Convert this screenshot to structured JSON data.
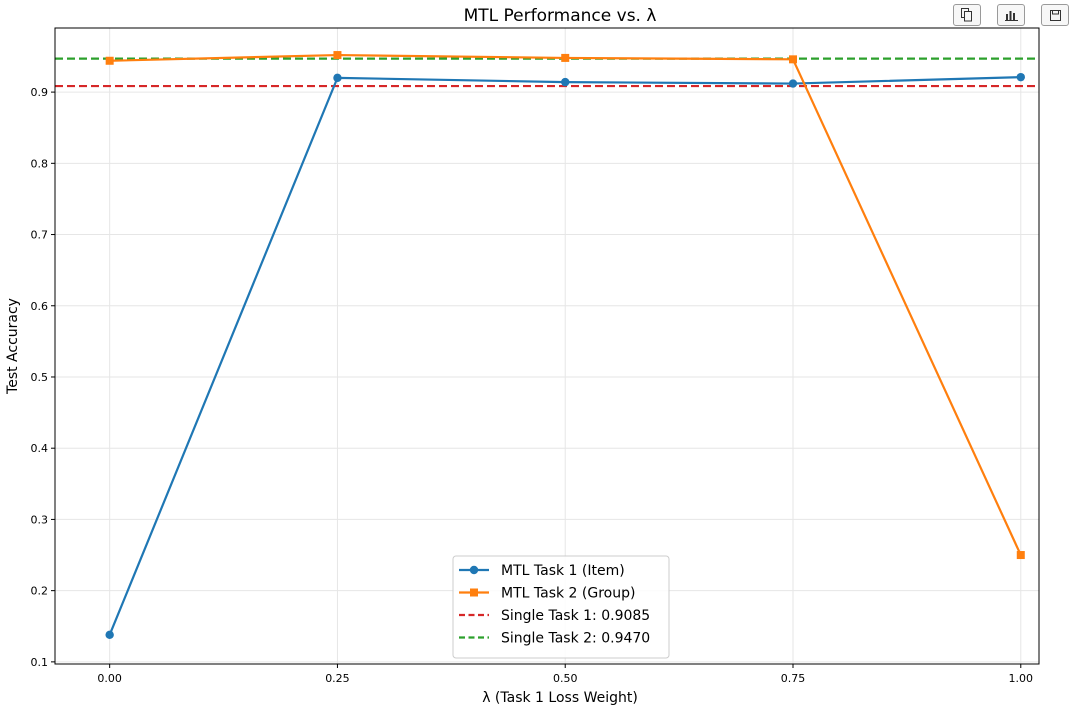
{
  "toolbar": {
    "icons": [
      "copy-icon",
      "bar-chart-icon",
      "save-icon"
    ]
  },
  "chart_data": {
    "type": "line",
    "title": "MTL Performance vs. λ",
    "xlabel": "λ (Task 1 Loss Weight)",
    "ylabel": "Test Accuracy",
    "x": [
      0.0,
      0.25,
      0.5,
      0.75,
      1.0
    ],
    "x_tick_labels": [
      "0.00",
      "0.25",
      "0.50",
      "0.75",
      "1.00"
    ],
    "y_tick_labels": [
      "0.1",
      "0.2",
      "0.3",
      "0.4",
      "0.5",
      "0.6",
      "0.7",
      "0.8",
      "0.9"
    ],
    "y_ticks": [
      0.1,
      0.2,
      0.3,
      0.4,
      0.5,
      0.6,
      0.7,
      0.8,
      0.9
    ],
    "xlim": [
      -0.06,
      1.02
    ],
    "ylim": [
      0.097,
      0.99
    ],
    "grid": true,
    "legend_position": "lower center",
    "series": [
      {
        "name": "MTL Task 1 (Item)",
        "values": [
          0.138,
          0.92,
          0.914,
          0.912,
          0.921
        ],
        "color": "#1f77b4",
        "marker": "circle",
        "style": "solid"
      },
      {
        "name": "MTL Task 2 (Group)",
        "values": [
          0.944,
          0.952,
          0.948,
          0.946,
          0.25
        ],
        "color": "#ff7f0e",
        "marker": "square",
        "style": "solid"
      }
    ],
    "reference_lines": [
      {
        "name": "Single Task 1: 0.9085",
        "value": 0.9085,
        "color": "#d62728",
        "style": "dashed"
      },
      {
        "name": "Single Task 2: 0.9470",
        "value": 0.947,
        "color": "#2ca02c",
        "style": "dashed"
      }
    ]
  }
}
